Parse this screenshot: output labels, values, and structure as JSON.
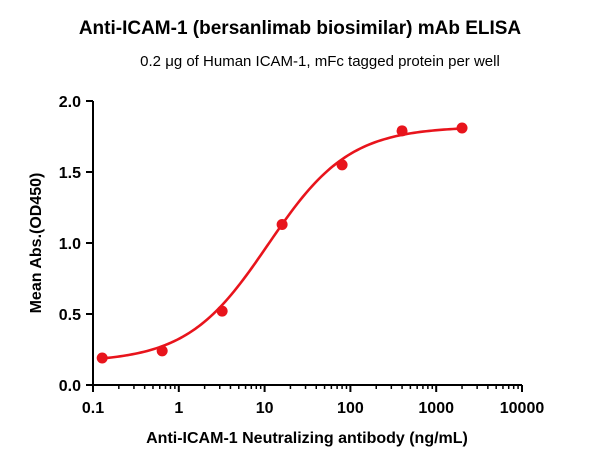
{
  "chart_data": {
    "type": "scatter",
    "title": "Anti-ICAM-1 (bersanlimab biosimilar) mAb ELISA",
    "subtitle": "0.2 μg of Human ICAM-1, mFc tagged protein per well",
    "xlabel": "Anti-ICAM-1 Neutralizing antibody (ng/mL)",
    "ylabel": "Mean Abs.(OD450)",
    "xscale": "log",
    "xlim": [
      0.1,
      10000
    ],
    "ylim": [
      0.0,
      2.0
    ],
    "xticks": [
      "0.1",
      "1",
      "10",
      "100",
      "1000",
      "10000"
    ],
    "yticks": [
      "0.0",
      "0.5",
      "1.0",
      "1.5",
      "2.0"
    ],
    "grid": false,
    "legend": "none",
    "series": [
      {
        "color": "#e8141c",
        "x": [
          0.128,
          0.64,
          3.2,
          16,
          80,
          400,
          2000
        ],
        "y": [
          0.19,
          0.24,
          0.52,
          1.13,
          1.55,
          1.79,
          1.81
        ],
        "fit": "4PL sigmoid"
      }
    ]
  }
}
